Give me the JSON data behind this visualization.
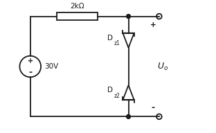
{
  "bg_color": "#ffffff",
  "wire_color": "#1a1a1a",
  "resistor_label": "2kΩ",
  "source_label": "30V",
  "dz1_label": "D",
  "dz1_sub": "z1",
  "dz2_label": "D",
  "dz2_sub": "z2",
  "plus_top": "+",
  "minus_bot": "-",
  "plus_src": "+",
  "minus_src": "-",
  "figsize": [
    3.12,
    1.92
  ],
  "dpi": 100,
  "xlim": [
    0,
    10
  ],
  "ylim": [
    0,
    6.5
  ]
}
